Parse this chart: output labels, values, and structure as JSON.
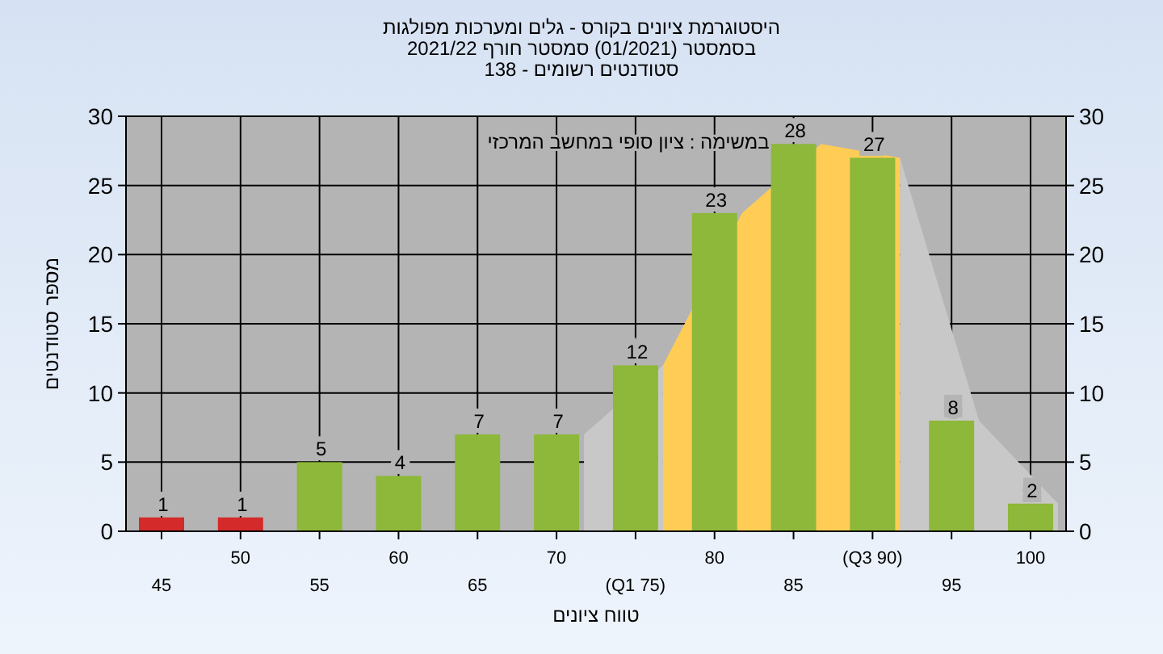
{
  "chart_data": {
    "type": "bar",
    "title": "היסטוגרמת ציונים בקורס - גלים ומערכות מפולגות",
    "subtitle": "בסמסטר  (01/2021)  סמסטר חורף 2021/22\nסטודנטים רשומים - 138",
    "xlabel": "טווח ציונים",
    "ylabel": "מספר סטודנטים",
    "annotations": [
      "במשימה : ציון סופי במחשב המרכזי"
    ],
    "categories": [
      "45",
      "50",
      "55",
      "60",
      "65",
      "70",
      "(Q1 75)",
      "80",
      "85",
      "(Q3 90)",
      "95",
      "100"
    ],
    "series": [
      {
        "type": "area",
        "color": "#c8c8c8",
        "values": [
          null,
          null,
          null,
          null,
          null,
          7,
          12,
          null,
          null,
          27,
          8,
          2
        ]
      },
      {
        "type": "area",
        "color": "#ffcc55",
        "values": [
          null,
          null,
          null,
          null,
          null,
          null,
          12,
          23,
          28,
          27,
          null,
          null
        ]
      },
      {
        "value_labels": [
          "1",
          "1",
          "5",
          "4",
          "7",
          "7",
          "12",
          "23",
          "28",
          "27",
          "8",
          "2"
        ],
        "colors": [
          "#d42a2a",
          "#d42a2a",
          "#8db83a",
          "#8db83a",
          "#8db83a",
          "#8db83a",
          "#8db83a",
          "#8db83a",
          "#8db83a",
          "#8db83a",
          "#8db83a",
          "#8db83a"
        ],
        "values": [
          1,
          1,
          5,
          4,
          7,
          7,
          12,
          23,
          28,
          27,
          8,
          2
        ]
      }
    ],
    "ylim": [
      0,
      30
    ],
    "yticks": [
      0,
      5,
      10,
      15,
      20,
      25,
      30
    ],
    "y2lim": [
      0,
      30
    ],
    "y2ticks": [
      0,
      5,
      10,
      15,
      20,
      25,
      30
    ],
    "grid": true
  }
}
